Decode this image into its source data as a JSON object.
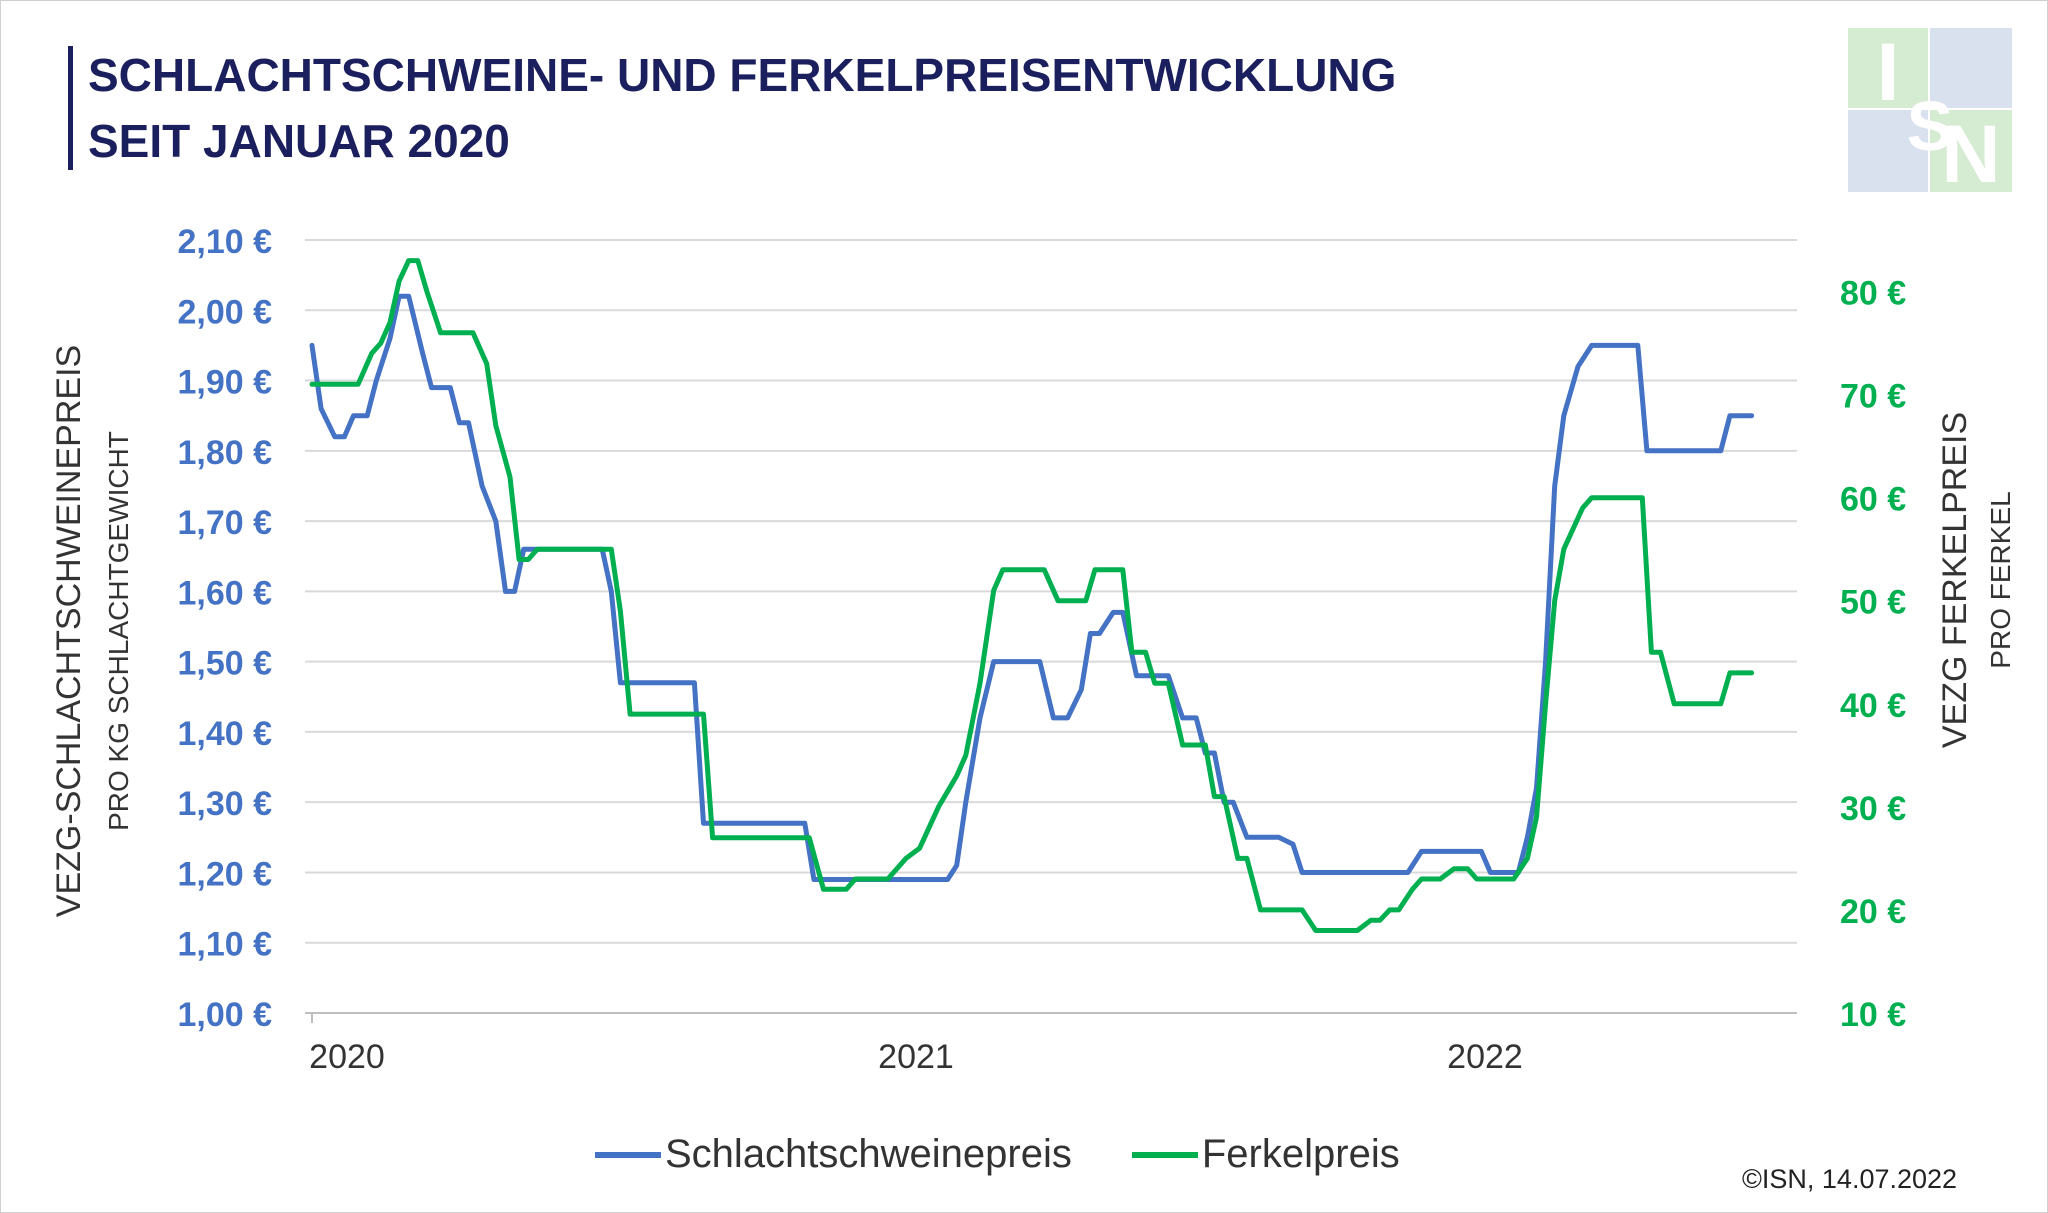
{
  "title": {
    "line1": "SCHLACHTSCHWEINE- UND FERKELPREISENTWICKLUNG",
    "line2": "SEIT JANUAR 2020"
  },
  "logo": {
    "letters": [
      "I",
      "S",
      "N"
    ],
    "icon": "pig-icon"
  },
  "copyright": "©ISN, 14.07.2022",
  "colors": {
    "blue": "#4472c4",
    "green": "#00b050",
    "title": "#1b1f5e",
    "grid": "#d9d9d9"
  },
  "chart_data": {
    "type": "line",
    "title": "SCHLACHTSCHWEINE- UND FERKELPREISENTWICKLUNG SEIT JANUAR 2020",
    "y_left": {
      "label": "VEZG-SCHLACHTSCHWEINEPREIS",
      "sublabel": "PRO KG SCHLACHTGEWICHT",
      "range": [
        1.0,
        2.1
      ],
      "ticks": [
        "1,00 €",
        "1,10 €",
        "1,20 €",
        "1,30 €",
        "1,40 €",
        "1,50 €",
        "1,60 €",
        "1,70 €",
        "1,80 €",
        "1,90 €",
        "2,00 €",
        "2,10 €"
      ]
    },
    "y_right": {
      "label": "VEZG FERKELPREIS",
      "sublabel": "PRO FERKEL",
      "range": [
        10,
        85
      ],
      "ticks": [
        "10 €",
        "20 €",
        "30 €",
        "40 €",
        "50 €",
        "60 €",
        "70 €",
        "80 €"
      ]
    },
    "x_labels": [
      {
        "label": "2020",
        "t": 0.0
      },
      {
        "label": "2021",
        "t": 1.0
      },
      {
        "label": "2022",
        "t": 2.0
      }
    ],
    "x_range": [
      0.0,
      2.53
    ],
    "series": [
      {
        "name": "Schlachtschweinepreis",
        "axis": "left",
        "color": "#4472c4",
        "points": [
          [
            0.0,
            1.95
          ],
          [
            0.016,
            1.86
          ],
          [
            0.04,
            1.82
          ],
          [
            0.057,
            1.82
          ],
          [
            0.073,
            1.85
          ],
          [
            0.097,
            1.85
          ],
          [
            0.113,
            1.9
          ],
          [
            0.137,
            1.96
          ],
          [
            0.153,
            2.02
          ],
          [
            0.17,
            2.02
          ],
          [
            0.194,
            1.94
          ],
          [
            0.21,
            1.89
          ],
          [
            0.243,
            1.89
          ],
          [
            0.259,
            1.84
          ],
          [
            0.275,
            1.84
          ],
          [
            0.299,
            1.75
          ],
          [
            0.323,
            1.7
          ],
          [
            0.34,
            1.6
          ],
          [
            0.356,
            1.6
          ],
          [
            0.372,
            1.66
          ],
          [
            0.51,
            1.66
          ],
          [
            0.526,
            1.6
          ],
          [
            0.542,
            1.47
          ],
          [
            0.672,
            1.47
          ],
          [
            0.688,
            1.27
          ],
          [
            0.866,
            1.27
          ],
          [
            0.882,
            1.19
          ],
          [
            1.117,
            1.19
          ],
          [
            1.133,
            1.21
          ],
          [
            1.149,
            1.3
          ],
          [
            1.174,
            1.42
          ],
          [
            1.198,
            1.5
          ],
          [
            1.279,
            1.5
          ],
          [
            1.303,
            1.42
          ],
          [
            1.328,
            1.42
          ],
          [
            1.352,
            1.46
          ],
          [
            1.368,
            1.54
          ],
          [
            1.384,
            1.54
          ],
          [
            1.408,
            1.57
          ],
          [
            1.425,
            1.57
          ],
          [
            1.449,
            1.48
          ],
          [
            1.505,
            1.48
          ],
          [
            1.53,
            1.42
          ],
          [
            1.554,
            1.42
          ],
          [
            1.57,
            1.37
          ],
          [
            1.586,
            1.37
          ],
          [
            1.603,
            1.3
          ],
          [
            1.619,
            1.3
          ],
          [
            1.643,
            1.25
          ],
          [
            1.699,
            1.25
          ],
          [
            1.724,
            1.24
          ],
          [
            1.74,
            1.2
          ],
          [
            1.926,
            1.2
          ],
          [
            1.95,
            1.23
          ],
          [
            2.055,
            1.23
          ],
          [
            2.071,
            1.2
          ],
          [
            2.12,
            1.2
          ],
          [
            2.136,
            1.25
          ],
          [
            2.152,
            1.32
          ],
          [
            2.168,
            1.5
          ],
          [
            2.184,
            1.75
          ],
          [
            2.2,
            1.85
          ],
          [
            2.225,
            1.92
          ],
          [
            2.249,
            1.95
          ],
          [
            2.33,
            1.95
          ],
          [
            2.346,
            1.8
          ],
          [
            2.476,
            1.8
          ],
          [
            2.492,
            1.85
          ],
          [
            2.53,
            1.85
          ]
        ]
      },
      {
        "name": "Ferkelpreis",
        "axis": "right",
        "color": "#00b050",
        "points": [
          [
            0.0,
            71
          ],
          [
            0.081,
            71
          ],
          [
            0.105,
            74
          ],
          [
            0.121,
            75
          ],
          [
            0.137,
            77
          ],
          [
            0.153,
            81
          ],
          [
            0.17,
            83
          ],
          [
            0.186,
            83
          ],
          [
            0.202,
            80
          ],
          [
            0.226,
            76
          ],
          [
            0.283,
            76
          ],
          [
            0.307,
            73
          ],
          [
            0.323,
            67
          ],
          [
            0.348,
            62
          ],
          [
            0.364,
            54
          ],
          [
            0.38,
            54
          ],
          [
            0.396,
            55
          ],
          [
            0.526,
            55
          ],
          [
            0.542,
            49
          ],
          [
            0.559,
            39
          ],
          [
            0.688,
            39
          ],
          [
            0.704,
            27
          ],
          [
            0.874,
            27
          ],
          [
            0.899,
            22
          ],
          [
            0.939,
            22
          ],
          [
            0.955,
            23
          ],
          [
            1.012,
            23
          ],
          [
            1.044,
            25
          ],
          [
            1.068,
            26
          ],
          [
            1.101,
            30
          ],
          [
            1.133,
            33
          ],
          [
            1.149,
            35
          ],
          [
            1.174,
            42
          ],
          [
            1.198,
            51
          ],
          [
            1.214,
            53
          ],
          [
            1.287,
            53
          ],
          [
            1.311,
            50
          ],
          [
            1.36,
            50
          ],
          [
            1.376,
            53
          ],
          [
            1.425,
            53
          ],
          [
            1.441,
            45
          ],
          [
            1.465,
            45
          ],
          [
            1.481,
            42
          ],
          [
            1.505,
            42
          ],
          [
            1.53,
            36
          ],
          [
            1.57,
            36
          ],
          [
            1.586,
            31
          ],
          [
            1.603,
            31
          ],
          [
            1.627,
            25
          ],
          [
            1.643,
            25
          ],
          [
            1.667,
            20
          ],
          [
            1.74,
            20
          ],
          [
            1.764,
            18
          ],
          [
            1.837,
            18
          ],
          [
            1.861,
            19
          ],
          [
            1.877,
            19
          ],
          [
            1.894,
            20
          ],
          [
            1.91,
            20
          ],
          [
            1.934,
            22
          ],
          [
            1.95,
            23
          ],
          [
            1.983,
            23
          ],
          [
            2.007,
            24
          ],
          [
            2.031,
            24
          ],
          [
            2.047,
            23
          ],
          [
            2.112,
            23
          ],
          [
            2.136,
            25
          ],
          [
            2.152,
            29
          ],
          [
            2.168,
            40
          ],
          [
            2.184,
            50
          ],
          [
            2.2,
            55
          ],
          [
            2.233,
            59
          ],
          [
            2.249,
            60
          ],
          [
            2.338,
            60
          ],
          [
            2.354,
            45
          ],
          [
            2.37,
            45
          ],
          [
            2.394,
            40
          ],
          [
            2.476,
            40
          ],
          [
            2.492,
            43
          ],
          [
            2.53,
            43
          ]
        ]
      }
    ],
    "grid": true,
    "legend": "bottom-center"
  }
}
